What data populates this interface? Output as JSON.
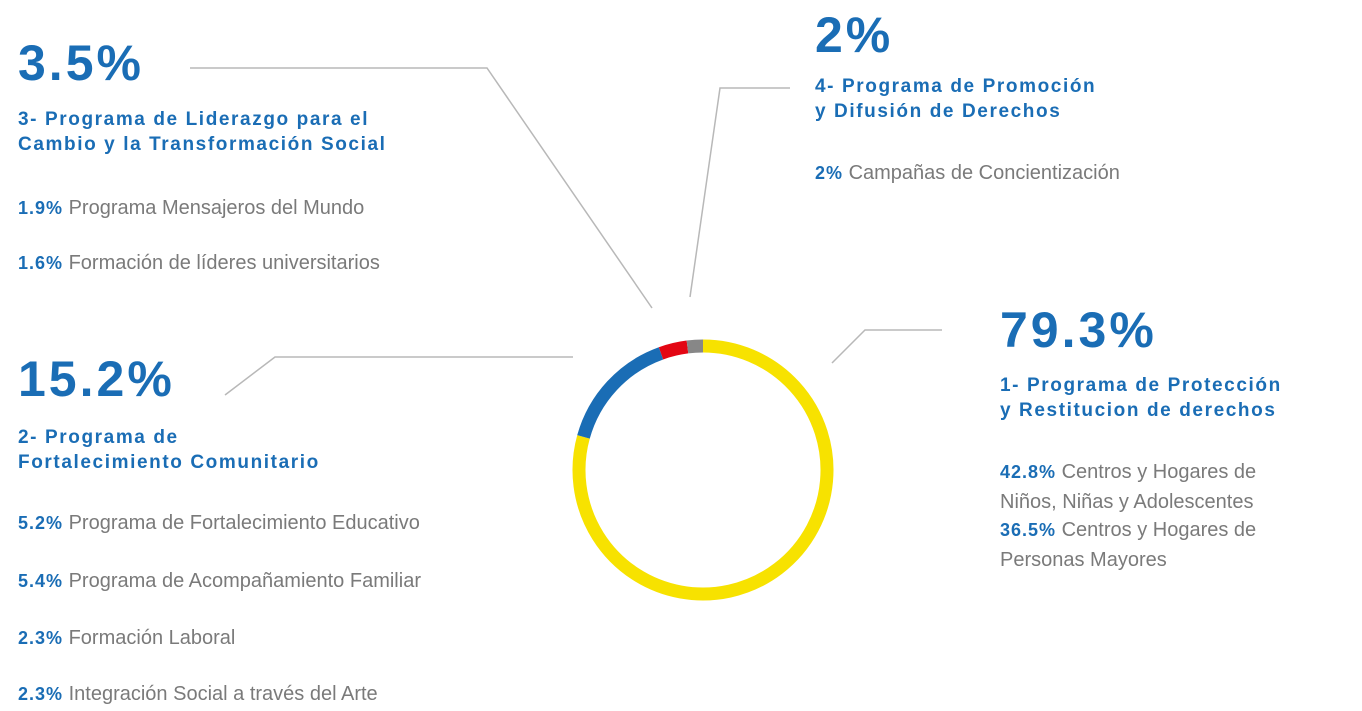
{
  "chart_data": {
    "type": "donut",
    "values": [
      79.3,
      15.2,
      3.5,
      2
    ],
    "value_labels": [
      "79.3%",
      "15.2%",
      "3.5%",
      "2%"
    ],
    "colors": [
      "#f7e200",
      "#1a6db5",
      "#e30613",
      "#878787"
    ],
    "groups": [
      {
        "title_lines": [
          "1- Programa de Protección",
          "y Restitucion de derechos"
        ],
        "items": [
          {
            "value": 42.8,
            "value_label": "42.8%",
            "label": "Centros y Hogares de Niños, Niñas y Adolescentes"
          },
          {
            "value": 36.5,
            "value_label": "36.5%",
            "label": "Centros y Hogares de Personas Mayores"
          }
        ]
      },
      {
        "title_lines": [
          "2- Programa de",
          "Fortalecimiento Comunitario"
        ],
        "items": [
          {
            "value": 5.2,
            "value_label": "5.2%",
            "label": "Programa de Fortalecimiento Educativo"
          },
          {
            "value": 5.4,
            "value_label": "5.4%",
            "label": "Programa de Acompañamiento Familiar"
          },
          {
            "value": 2.3,
            "value_label": "2.3%",
            "label": "Formación Laboral"
          },
          {
            "value": 2.3,
            "value_label": "2.3%",
            "label": "Integración Social a través del Arte"
          }
        ]
      },
      {
        "title_lines": [
          "3- Programa de Liderazgo para el",
          "Cambio y la Transformación Social"
        ],
        "items": [
          {
            "value": 1.9,
            "value_label": "1.9%",
            "label": "Programa Mensajeros del Mundo"
          },
          {
            "value": 1.6,
            "value_label": "1.6%",
            "label": "Formación de líderes universitarios"
          }
        ]
      },
      {
        "title_lines": [
          "4- Programa de Promoción",
          "y Difusión de Derechos"
        ],
        "items": [
          {
            "value": 2,
            "value_label": "2%",
            "label": "Campañas de Concientización"
          }
        ]
      }
    ]
  }
}
